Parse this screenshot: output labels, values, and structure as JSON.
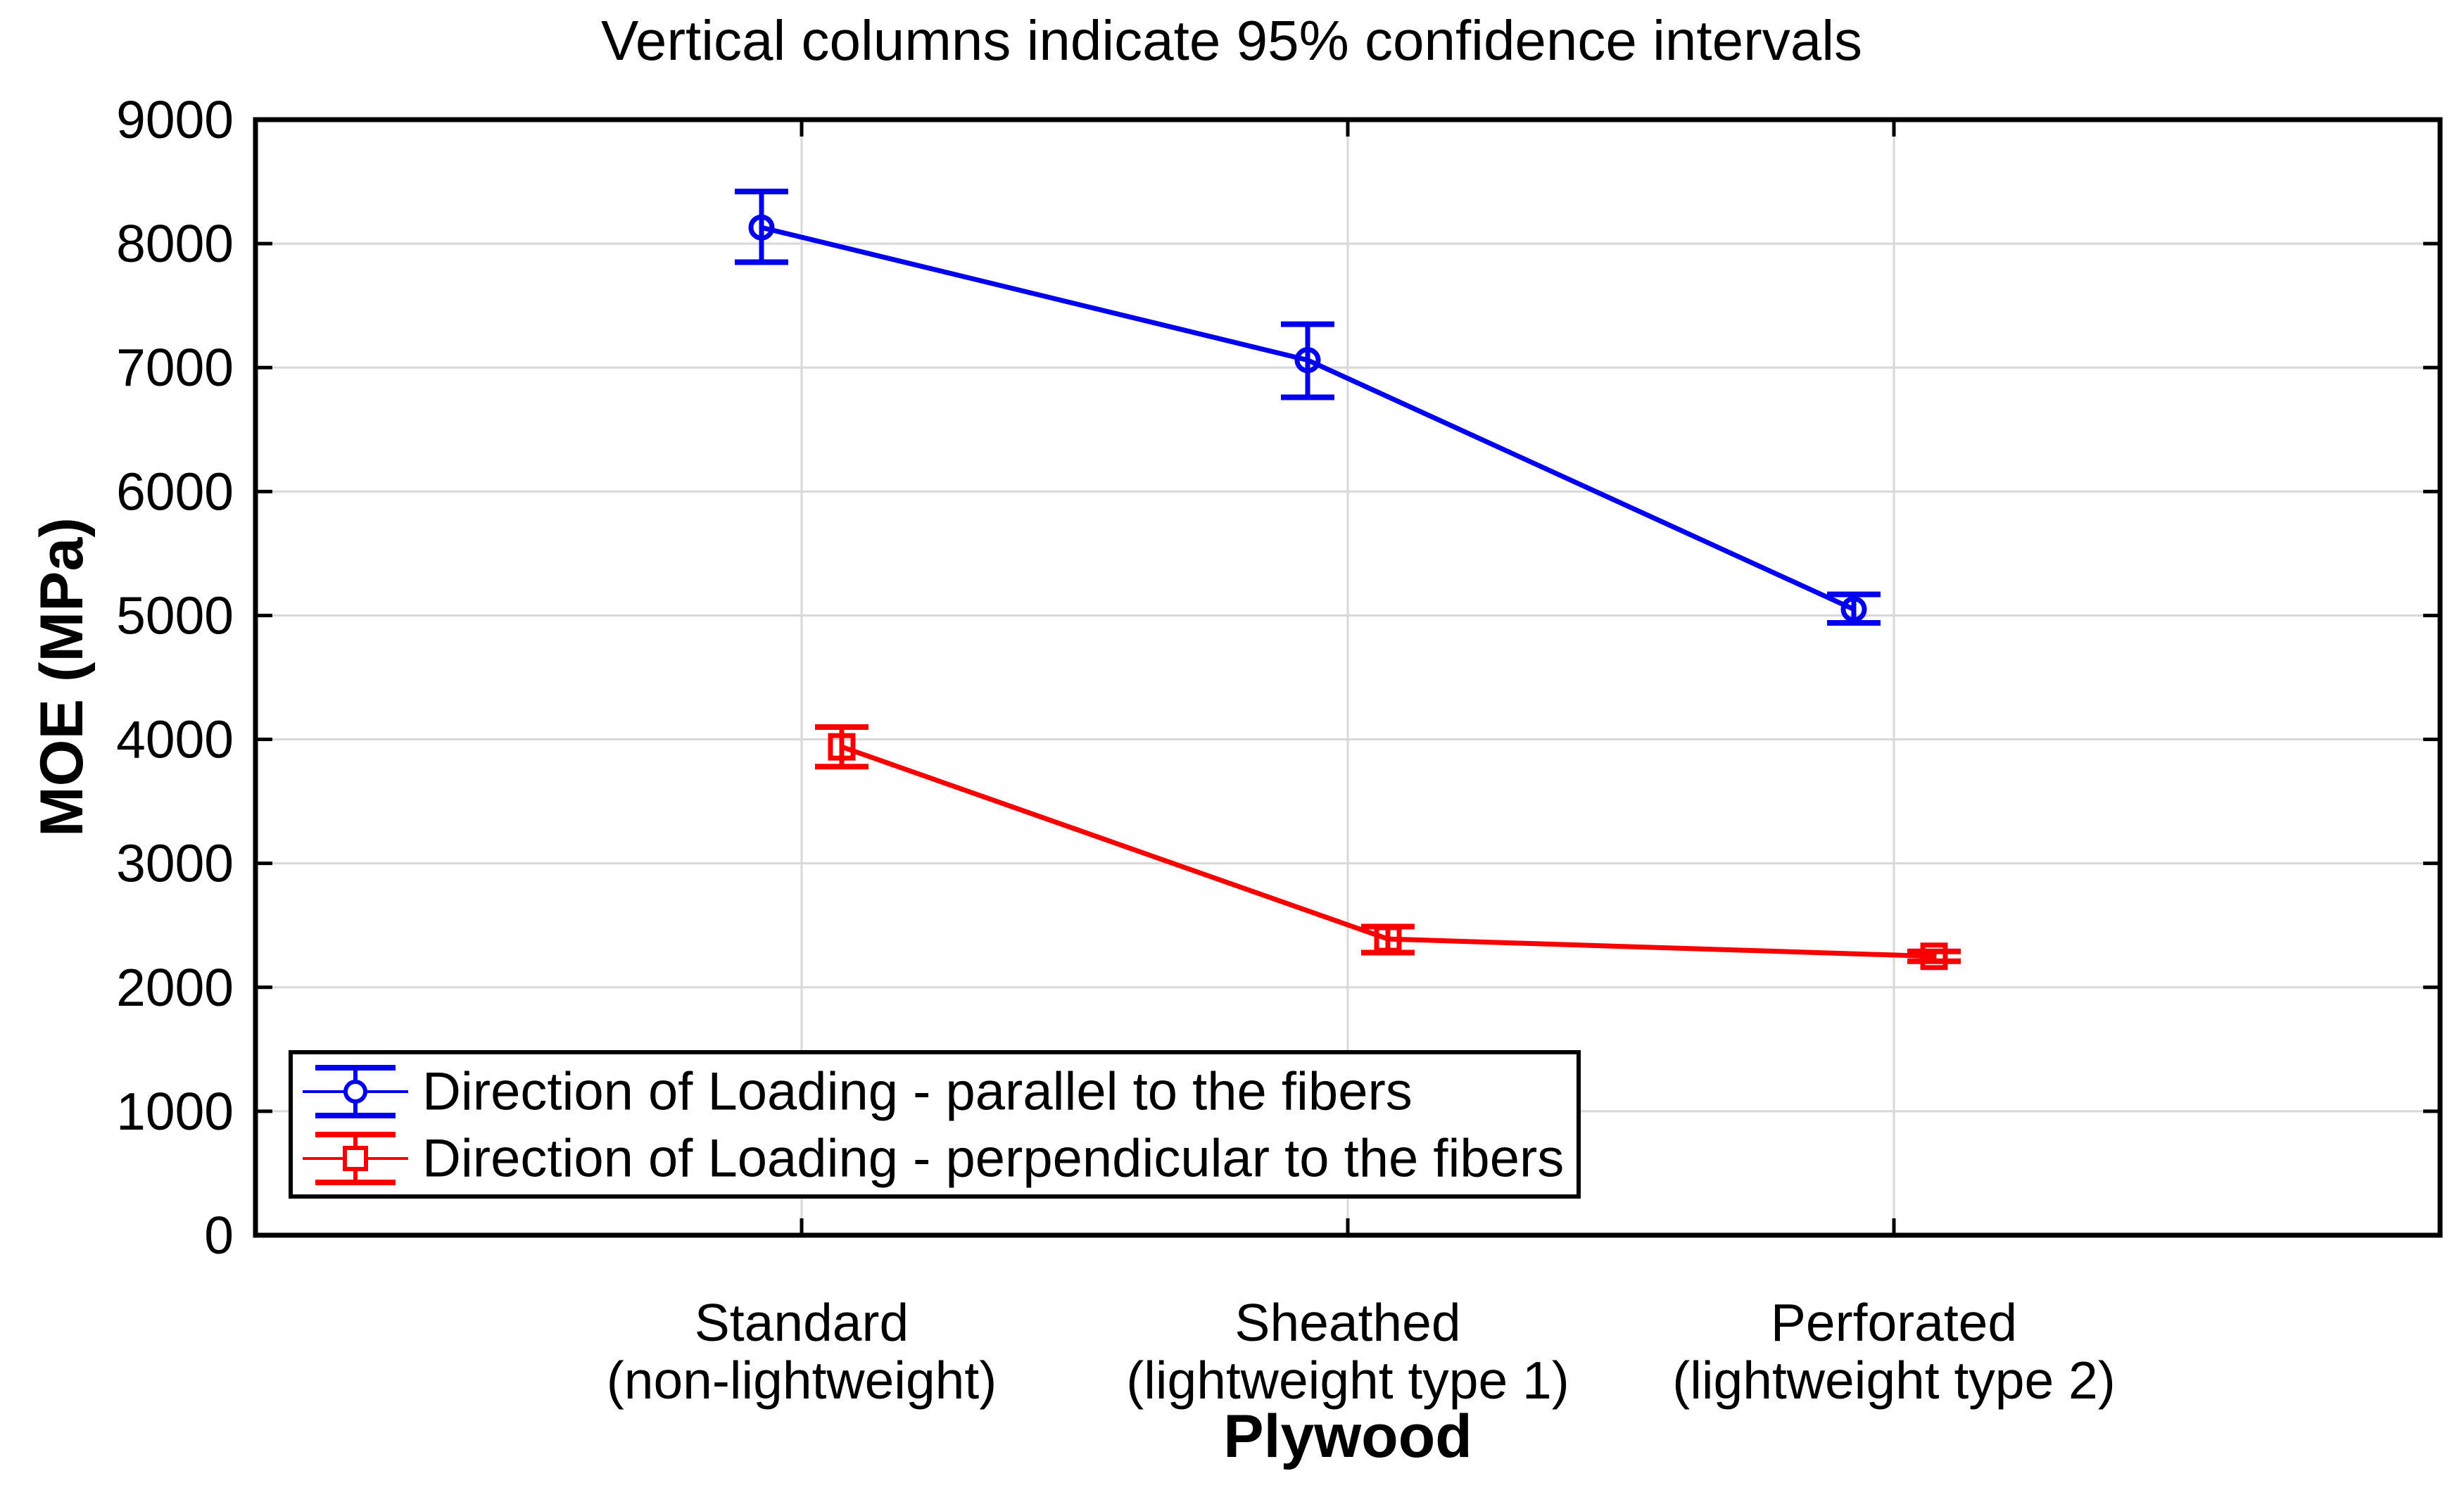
{
  "title": "Vertical columns indicate 95% confidence intervals",
  "chart_data": {
    "type": "line",
    "title": "Vertical columns indicate 95% confidence intervals",
    "xlabel": "Plywood",
    "ylabel": "MOE (MPa)",
    "ylim": [
      0,
      9000
    ],
    "yticks": [
      0,
      1000,
      2000,
      3000,
      4000,
      5000,
      6000,
      7000,
      8000,
      9000
    ],
    "grid": true,
    "legend_position": "inside-bottom-left",
    "frame_color": "#000000",
    "gridline_color": "#D8D8D8",
    "background_color": "#FFFFFF",
    "categories": [
      {
        "line1": "Standard",
        "line2": "(non-lightweight)"
      },
      {
        "line1": "Sheathed",
        "line2": "(lightweight type 1)"
      },
      {
        "line1": "Perforated",
        "line2": "(lightweight type 2)"
      }
    ],
    "series": [
      {
        "name": "Direction of Loading - parallel to the fibers",
        "marker": "circle",
        "color": "#0000EE",
        "values": [
          8130,
          7060,
          5050
        ],
        "ci_low": [
          7850,
          6760,
          4940
        ],
        "ci_high": [
          8420,
          7350,
          5170
        ]
      },
      {
        "name": "Direction of Loading - perpendicular to the fibers",
        "marker": "square",
        "color": "#F80000",
        "values": [
          3940,
          2390,
          2250
        ],
        "ci_low": [
          3780,
          2280,
          2210
        ],
        "ci_high": [
          4100,
          2490,
          2290
        ]
      }
    ]
  }
}
